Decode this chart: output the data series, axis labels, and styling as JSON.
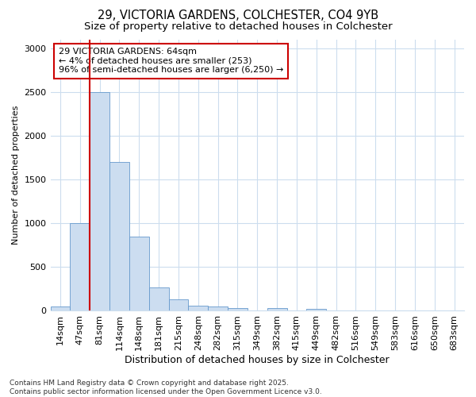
{
  "title": "29, VICTORIA GARDENS, COLCHESTER, CO4 9YB",
  "subtitle": "Size of property relative to detached houses in Colchester",
  "xlabel": "Distribution of detached houses by size in Colchester",
  "ylabel": "Number of detached properties",
  "bin_labels": [
    "14sqm",
    "47sqm",
    "81sqm",
    "114sqm",
    "148sqm",
    "181sqm",
    "215sqm",
    "248sqm",
    "282sqm",
    "315sqm",
    "349sqm",
    "382sqm",
    "415sqm",
    "449sqm",
    "482sqm",
    "516sqm",
    "549sqm",
    "583sqm",
    "616sqm",
    "650sqm",
    "683sqm"
  ],
  "bar_values": [
    50,
    1000,
    2500,
    1700,
    850,
    270,
    130,
    60,
    50,
    30,
    0,
    30,
    0,
    20,
    0,
    0,
    0,
    0,
    0,
    0,
    0
  ],
  "bar_color": "#ccddf0",
  "bar_edge_color": "#6699cc",
  "vline_position": 1.5,
  "vline_color": "#cc0000",
  "annotation_text": "29 VICTORIA GARDENS: 64sqm\n← 4% of detached houses are smaller (253)\n96% of semi-detached houses are larger (6,250) →",
  "annotation_box_facecolor": "#ffffff",
  "annotation_box_edgecolor": "#cc0000",
  "ylim": [
    0,
    3100
  ],
  "yticks": [
    0,
    500,
    1000,
    1500,
    2000,
    2500,
    3000
  ],
  "background_color": "#ffffff",
  "grid_color": "#ccddee",
  "footnote": "Contains HM Land Registry data © Crown copyright and database right 2025.\nContains public sector information licensed under the Open Government Licence v3.0.",
  "title_fontsize": 10.5,
  "subtitle_fontsize": 9.5,
  "ylabel_fontsize": 8,
  "xlabel_fontsize": 9,
  "tick_fontsize": 8,
  "annotation_fontsize": 8,
  "footnote_fontsize": 6.5
}
